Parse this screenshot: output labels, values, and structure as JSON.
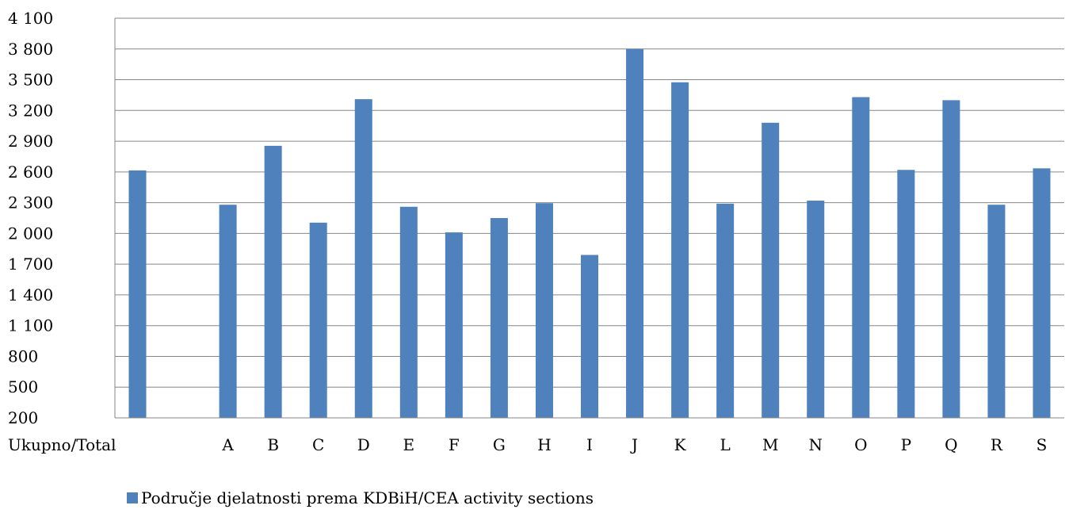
{
  "chart_data": {
    "type": "bar",
    "categories": [
      "Ukupno/Total",
      "",
      "A",
      "B",
      "C",
      "D",
      "E",
      "F",
      "G",
      "H",
      "I",
      "J",
      "K",
      "L",
      "M",
      "N",
      "O",
      "P",
      "Q",
      "R",
      "S"
    ],
    "series": [
      {
        "name": "Područje djelatnosti prema KDBiH/CEA activity sections",
        "values": [
          2615,
          null,
          2280,
          2855,
          2105,
          3310,
          2260,
          2010,
          2150,
          2295,
          1790,
          3800,
          3475,
          2290,
          3080,
          2320,
          3330,
          2620,
          3300,
          2280,
          2635
        ]
      }
    ],
    "ylim": [
      200,
      4100
    ],
    "yticks": [
      200,
      500,
      800,
      1100,
      1400,
      1700,
      2000,
      2300,
      2600,
      2900,
      3200,
      3500,
      3800,
      4100
    ],
    "ytick_labels": [
      "200",
      "500",
      "800",
      "1 100",
      "1 400",
      "1 700",
      "2 000",
      "2 300",
      "2 600",
      "2 900",
      "3 200",
      "3 500",
      "3 800",
      "4 100"
    ],
    "grid": true,
    "legend_position": "bottom",
    "colors": {
      "bar": "#4f81bd",
      "grid": "#868686",
      "axis": "#868686"
    }
  }
}
